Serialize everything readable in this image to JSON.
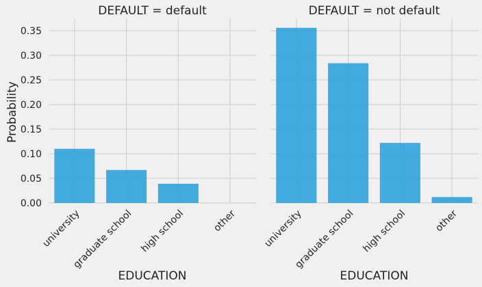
{
  "chart_data": [
    {
      "type": "bar",
      "title": "DEFAULT = default",
      "categories": [
        "university",
        "graduate school",
        "high school",
        "other"
      ],
      "values": [
        0.11,
        0.067,
        0.039,
        0.0
      ],
      "xlabel": "EDUCATION",
      "ylabel": "Probability",
      "yticks": [
        "0.00",
        "0.05",
        "0.10",
        "0.15",
        "0.20",
        "0.25",
        "0.30",
        "0.35"
      ],
      "ylim": [
        0,
        0.375
      ],
      "grid": true,
      "bar_color": "#30a2da"
    },
    {
      "type": "bar",
      "title": "DEFAULT = not default",
      "categories": [
        "university",
        "graduate school",
        "high school",
        "other"
      ],
      "values": [
        0.356,
        0.284,
        0.122,
        0.012
      ],
      "xlabel": "EDUCATION",
      "ylabel": "",
      "ylim": [
        0,
        0.375
      ],
      "grid": true,
      "bar_color": "#30a2da"
    }
  ]
}
